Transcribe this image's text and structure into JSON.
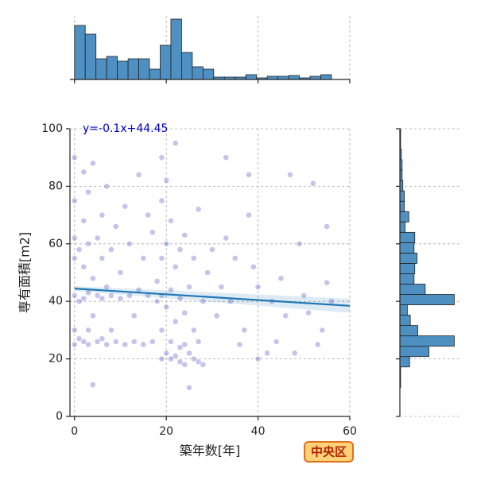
{
  "chart_data": [
    {
      "type": "scatter",
      "xlabel": "築年数[年]",
      "ylabel": "専有面積[m2]",
      "xlim": [
        -1,
        60
      ],
      "ylim": [
        0,
        100
      ],
      "xticks": [
        0,
        20,
        40,
        60
      ],
      "yticks": [
        0,
        20,
        40,
        60,
        80,
        100
      ],
      "grid": true,
      "color": "#3a3ac0",
      "x": [
        0,
        0,
        0,
        0,
        0,
        0,
        0,
        1,
        1,
        1,
        2,
        2,
        2,
        2,
        2,
        3,
        3,
        3,
        3,
        3,
        4,
        4,
        4,
        4,
        5,
        5,
        5,
        6,
        6,
        6,
        6,
        7,
        7,
        7,
        8,
        8,
        8,
        9,
        9,
        10,
        10,
        11,
        11,
        12,
        12,
        13,
        13,
        14,
        14,
        15,
        15,
        16,
        16,
        17,
        17,
        18,
        18,
        19,
        19,
        19,
        19,
        19,
        19,
        20,
        20,
        20,
        20,
        21,
        21,
        21,
        21,
        22,
        22,
        22,
        22,
        23,
        23,
        23,
        23,
        24,
        24,
        24,
        24,
        25,
        25,
        25,
        26,
        26,
        26,
        27,
        27,
        27,
        28,
        28,
        29,
        30,
        31,
        32,
        33,
        33,
        34,
        35,
        36,
        37,
        38,
        38,
        39,
        40,
        40,
        42,
        43,
        44,
        45,
        46,
        47,
        48,
        49,
        50,
        51,
        52,
        53,
        54,
        55,
        55,
        56
      ],
      "values": [
        25,
        30,
        42,
        55,
        62,
        75,
        90,
        27,
        40,
        58,
        26,
        41,
        52,
        68,
        85,
        25,
        30,
        43,
        60,
        78,
        11,
        35,
        48,
        88,
        26,
        42,
        62,
        27,
        41,
        55,
        70,
        25,
        45,
        80,
        30,
        42,
        58,
        26,
        66,
        41,
        50,
        25,
        73,
        42,
        60,
        26,
        35,
        44,
        84,
        25,
        55,
        42,
        70,
        26,
        64,
        40,
        47,
        20,
        30,
        42,
        55,
        75,
        90,
        22,
        38,
        60,
        82,
        20,
        26,
        44,
        68,
        21,
        33,
        52,
        95,
        19,
        24,
        41,
        58,
        18,
        25,
        36,
        63,
        10,
        22,
        45,
        20,
        30,
        55,
        19,
        26,
        72,
        18,
        40,
        50,
        58,
        35,
        45,
        62,
        90,
        40,
        55,
        25,
        30,
        84,
        70,
        52,
        20,
        45,
        22,
        40,
        26,
        48,
        35,
        84,
        22,
        60,
        42,
        36,
        81,
        25,
        30,
        46.5,
        66,
        40
      ],
      "fit": {
        "x": [
          0,
          60
        ],
        "values": [
          44.45,
          38.45
        ],
        "color": "#1f77b4"
      },
      "annotation": "y=-0.1x+44.45"
    },
    {
      "type": "histogram",
      "orientation": "vertical",
      "color": "#4f90c2",
      "bins": [
        0,
        2.33,
        4.67,
        7,
        9.33,
        11.67,
        14,
        16.33,
        18.67,
        21,
        23.33,
        25.67,
        28,
        30.33,
        32.67,
        35,
        37.33,
        39.67,
        42,
        44.33,
        46.67,
        49,
        51.33,
        53.67,
        56
      ],
      "counts": [
        68,
        57,
        26,
        29,
        23,
        26,
        26,
        13,
        43,
        76,
        34,
        16,
        13,
        3,
        3,
        3,
        6,
        2,
        4,
        4,
        5,
        2,
        4,
        6
      ],
      "xlim": [
        -1,
        60
      ],
      "xticks": [
        0,
        20,
        40,
        60
      ],
      "ylim": [
        0,
        80
      ],
      "grid": true
    },
    {
      "type": "histogram",
      "orientation": "horizontal",
      "color": "#4f90c2",
      "bins": [
        10,
        13.6,
        17.2,
        20.8,
        24.4,
        28,
        31.6,
        35.2,
        38.8,
        42.4,
        46,
        49.6,
        53.2,
        56.8,
        60.4,
        64,
        67.6,
        71.2,
        74.8,
        78.4,
        82,
        85.6,
        89.2,
        92.8,
        96.4,
        100
      ],
      "counts": [
        1,
        1,
        13,
        39,
        73,
        24,
        14,
        10,
        73,
        34,
        19,
        20,
        23,
        19,
        20,
        7,
        12,
        6,
        6,
        4,
        3,
        3,
        2,
        1,
        1
      ],
      "ylim": [
        0,
        100
      ],
      "yticks": [
        0,
        20,
        40,
        60,
        80,
        100
      ],
      "xlim": [
        0,
        80
      ],
      "grid": true
    }
  ],
  "badge": "中央区"
}
